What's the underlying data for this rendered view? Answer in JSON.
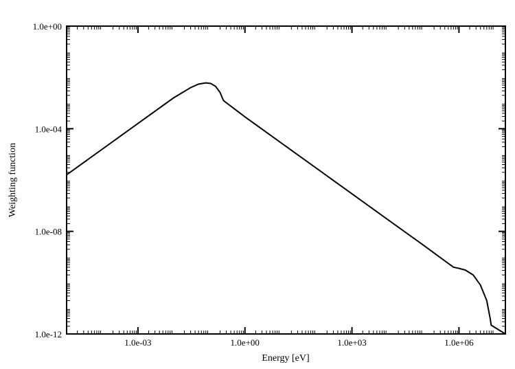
{
  "chart_data": {
    "type": "line",
    "title": "",
    "xlabel": "Energy [eV]",
    "ylabel": "Weighting function",
    "x_scale": "log",
    "y_scale": "log",
    "xlim": [
      1e-05,
      20000000.0
    ],
    "ylim": [
      1e-12,
      1
    ],
    "x_ticks": [
      {
        "value": 0.001,
        "label": "1.0e-03"
      },
      {
        "value": 1,
        "label": "1.0e+00"
      },
      {
        "value": 1000,
        "label": "1.0e+03"
      },
      {
        "value": 1000000,
        "label": "1.0e+06"
      }
    ],
    "y_ticks": [
      {
        "value": 1,
        "label": "1.0e+00"
      },
      {
        "value": 0.0001,
        "label": "1.0e-04"
      },
      {
        "value": 1e-08,
        "label": "1.0e-08"
      },
      {
        "value": 1e-12,
        "label": "1.0e-12"
      }
    ],
    "grid": false,
    "legend": "none",
    "series": [
      {
        "color": "#000000",
        "points": [
          [
            1e-05,
            1.6e-06
          ],
          [
            0.0001,
            1.6e-05
          ],
          [
            0.001,
            0.00016
          ],
          [
            0.01,
            0.0016
          ],
          [
            0.03,
            0.004
          ],
          [
            0.05,
            0.0055
          ],
          [
            0.08,
            0.0061
          ],
          [
            0.11,
            0.0058
          ],
          [
            0.15,
            0.0045
          ],
          [
            0.2,
            0.0026
          ],
          [
            0.25,
            0.00125
          ],
          [
            1,
            0.00029
          ],
          [
            10,
            2.9e-05
          ],
          [
            100,
            2.9e-06
          ],
          [
            1000,
            2.9e-07
          ],
          [
            10000,
            2.9e-08
          ],
          [
            100000,
            2.9e-09
          ],
          [
            700000,
            4e-10
          ],
          [
            1000000,
            3.6e-10
          ],
          [
            1500000,
            3.1e-10
          ],
          [
            2500000,
            2e-10
          ],
          [
            4000000,
            8e-11
          ],
          [
            6000000,
            2e-11
          ],
          [
            7500000,
            4e-12
          ],
          [
            8000000,
            2.2e-12
          ],
          [
            20000000.0,
            1e-12
          ]
        ]
      }
    ]
  }
}
